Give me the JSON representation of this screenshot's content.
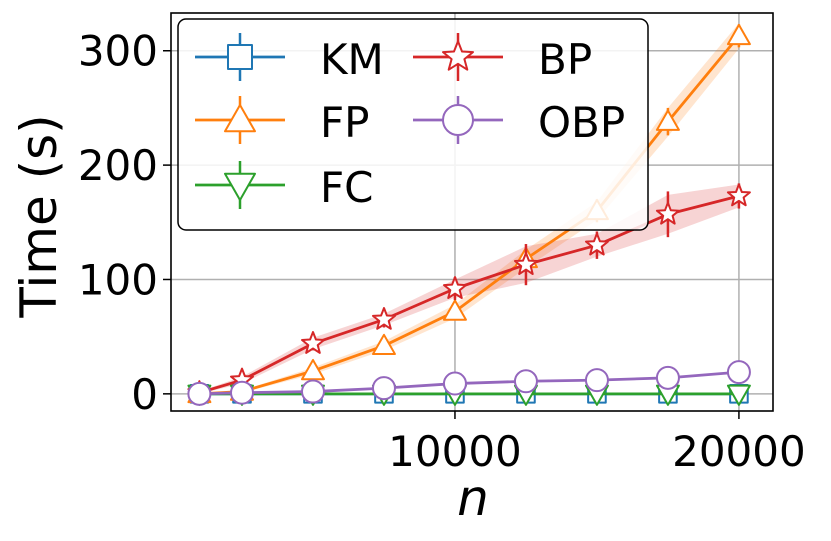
{
  "chart_data": {
    "type": "line",
    "title": "",
    "xlabel": "n",
    "ylabel": "Time (s)",
    "xlim": [
      0,
      21200
    ],
    "ylim": [
      -15,
      333
    ],
    "grid": true,
    "legend_position": "top-left",
    "x_ticks": [
      10000,
      20000
    ],
    "x_tick_labels": [
      "10000",
      "20000"
    ],
    "y_ticks": [
      0,
      100,
      200,
      300
    ],
    "y_tick_labels": [
      "0",
      "100",
      "200",
      "300"
    ],
    "x": [
      1000,
      2500,
      5000,
      7500,
      10000,
      12500,
      15000,
      17500,
      20000
    ],
    "series": [
      {
        "name": "KM",
        "color": "#1f77b4",
        "marker": "square",
        "values": [
          0,
          0,
          0,
          0,
          0,
          0,
          0,
          0,
          0
        ]
      },
      {
        "name": "FP",
        "color": "#ff7f0e",
        "marker": "triangle-up",
        "values": [
          0,
          2,
          20,
          42,
          72,
          118,
          160,
          238,
          313
        ],
        "band_lower": [
          0,
          1,
          17,
          38,
          66,
          110,
          152,
          225,
          302
        ],
        "band_upper": [
          0,
          3,
          23,
          46,
          78,
          126,
          168,
          250,
          324
        ],
        "err_lower": [
          0,
          1,
          16,
          37,
          65,
          108,
          150,
          226,
          303
        ],
        "err_upper": [
          0,
          3,
          24,
          47,
          79,
          128,
          170,
          250,
          323
        ]
      },
      {
        "name": "FC",
        "color": "#2ca02c",
        "marker": "triangle-down",
        "values": [
          0,
          0,
          0,
          0,
          0,
          0,
          0,
          0,
          0
        ]
      },
      {
        "name": "BP",
        "color": "#d62728",
        "marker": "star",
        "values": [
          1,
          12,
          44,
          65,
          92,
          113,
          130,
          157,
          173
        ],
        "band_lower": [
          0,
          9,
          39,
          60,
          84,
          97,
          120,
          140,
          163
        ],
        "band_upper": [
          2,
          15,
          49,
          70,
          100,
          129,
          140,
          174,
          183
        ],
        "err_lower": [
          0,
          8,
          38,
          58,
          82,
          95,
          118,
          137,
          162
        ],
        "err_upper": [
          3,
          16,
          50,
          72,
          102,
          131,
          142,
          177,
          184
        ]
      },
      {
        "name": "OBP",
        "color": "#9467bd",
        "marker": "circle",
        "values": [
          0,
          1,
          2,
          5,
          9,
          11,
          12,
          14,
          19
        ]
      }
    ]
  }
}
